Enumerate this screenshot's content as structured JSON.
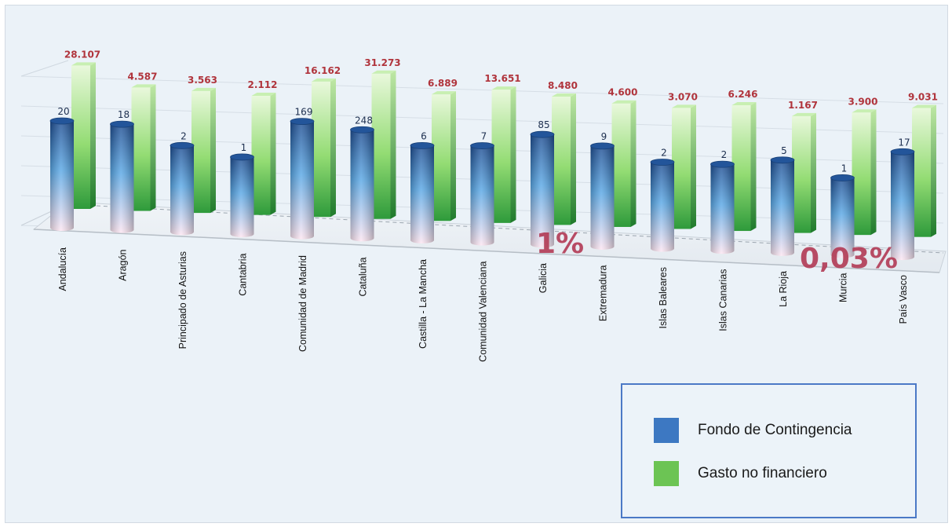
{
  "chart_data": {
    "type": "bar",
    "categories": [
      "Andalucía",
      "Aragón",
      "Principado de Asturias",
      "Cantabria",
      "Comunidad de Madrid",
      "Cataluña",
      "Castilla - La Mancha",
      "Comunidad Valenciana",
      "Galicia",
      "Extremadura",
      "Islas Baleares",
      "Islas Canarias",
      "La Rioja",
      "Murcia",
      "País Vasco"
    ],
    "series": [
      {
        "name": "Fondo de Contingencia",
        "values": [
          20,
          18,
          2,
          1,
          169,
          248,
          6,
          7,
          85,
          9,
          2,
          2,
          5,
          1,
          17
        ],
        "labels": [
          "20",
          "18",
          "2",
          "1",
          "169",
          "248",
          "6",
          "7",
          "85",
          "9",
          "2",
          "2",
          "5",
          "1",
          "17"
        ],
        "color": "#3d78c2"
      },
      {
        "name": "Gasto no financiero",
        "values": [
          28107,
          4587,
          3563,
          2112,
          16162,
          31273,
          6889,
          13651,
          8480,
          4600,
          3070,
          6246,
          1167,
          3900,
          9031
        ],
        "labels": [
          "28.107",
          "4.587",
          "3.563",
          "2.112",
          "16.162",
          "31.273",
          "6.889",
          "13.651",
          "8.480",
          "4.600",
          "3.070",
          "6.246",
          "1.167",
          "3.900",
          "9.031"
        ],
        "color": "#5cbf4a"
      }
    ],
    "annotations": [
      "1%",
      "0,03%"
    ],
    "legend_position": "bottom-right",
    "grid": true
  },
  "legend": {
    "items": [
      {
        "label": "Fondo de Contingencia",
        "color": "#3d78c2"
      },
      {
        "label": "Gasto no financiero",
        "color": "#6cc454"
      }
    ]
  },
  "colors": {
    "blue_label": "#1d2f4f",
    "green_label": "#b0343c",
    "annotation": "#b23a55"
  }
}
